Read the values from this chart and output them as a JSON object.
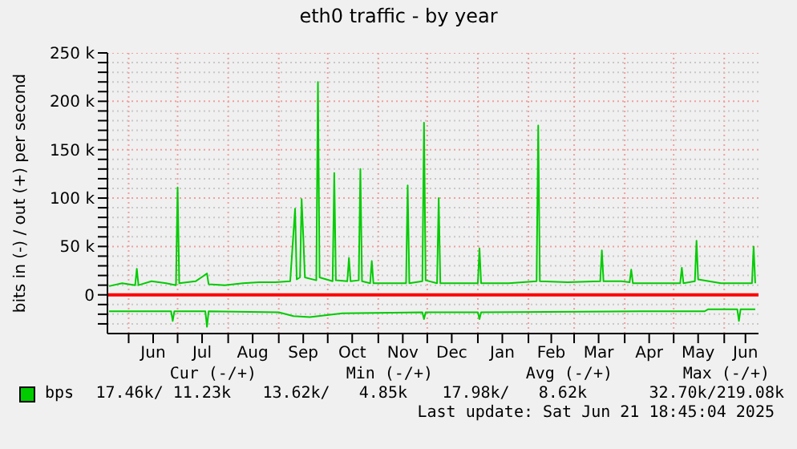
{
  "chart_data": {
    "type": "line",
    "title": "eth0 traffic - by year",
    "ylabel": "bits in (-) / out (+) per second",
    "xlim": [
      "2024-05-19",
      "2025-06-22"
    ],
    "xticks": [
      {
        "value": "2024-06-01",
        "label": null
      },
      {
        "value": "2024-06-16",
        "label": "Jun"
      },
      {
        "value": "2024-07-01",
        "label": null
      },
      {
        "value": "2024-07-16",
        "label": "Jul"
      },
      {
        "value": "2024-08-01",
        "label": null
      },
      {
        "value": "2024-08-16",
        "label": "Aug"
      },
      {
        "value": "2024-09-01",
        "label": null
      },
      {
        "value": "2024-09-16",
        "label": "Sep"
      },
      {
        "value": "2024-10-01",
        "label": null
      },
      {
        "value": "2024-10-16",
        "label": "Oct"
      },
      {
        "value": "2024-11-01",
        "label": null
      },
      {
        "value": "2024-11-16",
        "label": "Nov"
      },
      {
        "value": "2024-12-01",
        "label": null
      },
      {
        "value": "2024-12-16",
        "label": "Dec"
      },
      {
        "value": "2025-01-01",
        "label": null
      },
      {
        "value": "2025-01-16",
        "label": "Jan"
      },
      {
        "value": "2025-02-01",
        "label": null
      },
      {
        "value": "2025-02-15",
        "label": "Feb"
      },
      {
        "value": "2025-03-01",
        "label": null
      },
      {
        "value": "2025-03-16",
        "label": "Mar"
      },
      {
        "value": "2025-04-01",
        "label": null
      },
      {
        "value": "2025-04-16",
        "label": "Apr"
      },
      {
        "value": "2025-05-01",
        "label": null
      },
      {
        "value": "2025-05-16",
        "label": "May"
      },
      {
        "value": "2025-06-01",
        "label": null
      },
      {
        "value": "2025-06-14",
        "label": "Jun"
      }
    ],
    "ylim": [
      -40000,
      250000
    ],
    "yticks": [
      {
        "value": -30000,
        "label": null
      },
      {
        "value": -20000,
        "label": null
      },
      {
        "value": -10000,
        "label": null
      },
      0,
      {
        "value": 10000,
        "label": null
      },
      {
        "value": 20000,
        "label": null
      },
      {
        "value": 30000,
        "label": null
      },
      {
        "value": 40000,
        "label": null
      },
      {
        "value": 50000,
        "label": "50 k"
      },
      {
        "value": 60000,
        "label": null
      },
      {
        "value": 70000,
        "label": null
      },
      {
        "value": 80000,
        "label": null
      },
      {
        "value": 90000,
        "label": null
      },
      {
        "value": 100000,
        "label": "100 k"
      },
      {
        "value": 110000,
        "label": null
      },
      {
        "value": 120000,
        "label": null
      },
      {
        "value": 130000,
        "label": null
      },
      {
        "value": 140000,
        "label": null
      },
      {
        "value": 150000,
        "label": "150 k"
      },
      {
        "value": 160000,
        "label": null
      },
      {
        "value": 170000,
        "label": null
      },
      {
        "value": 180000,
        "label": null
      },
      {
        "value": 190000,
        "label": null
      },
      {
        "value": 200000,
        "label": "200 k"
      },
      {
        "value": 210000,
        "label": null
      },
      {
        "value": 220000,
        "label": null
      },
      {
        "value": 230000,
        "label": null
      },
      {
        "value": 240000,
        "label": null
      },
      {
        "value": 250000,
        "label": "250 k"
      }
    ],
    "grid": true,
    "legend": "bottom left",
    "marker": "none",
    "line_style": "solid",
    "ref_lines": [
      {
        "axis": "y",
        "value": 0,
        "label": null,
        "color": "#ff0000"
      }
    ],
    "series": [
      {
        "name": "bps",
        "color": "#00cc00",
        "x": [
          "2024-05-20",
          "2024-05-28",
          "2024-06-05",
          "2024-06-06",
          "2024-06-07",
          "2024-06-15",
          "2024-06-24",
          "2024-06-30",
          "2024-07-01",
          "2024-07-02",
          "2024-07-12",
          "2024-07-19",
          "2024-07-20",
          "2024-07-30",
          "2024-08-10",
          "2024-08-20",
          "2024-08-30",
          "2024-09-08",
          "2024-09-11",
          "2024-09-12",
          "2024-09-14",
          "2024-09-15",
          "2024-09-16",
          "2024-09-17",
          "2024-09-24",
          "2024-09-25",
          "2024-09-26",
          "2024-10-04",
          "2024-10-05",
          "2024-10-06",
          "2024-10-13",
          "2024-10-14",
          "2024-10-15",
          "2024-10-20",
          "2024-10-21",
          "2024-10-22",
          "2024-10-27",
          "2024-10-28",
          "2024-10-29",
          "2024-11-10",
          "2024-11-18",
          "2024-11-19",
          "2024-11-20",
          "2024-11-28",
          "2024-11-29",
          "2024-11-30",
          "2024-12-07",
          "2024-12-08",
          "2024-12-09",
          "2024-12-20",
          "2025-01-01",
          "2025-01-02",
          "2025-01-03",
          "2025-01-20",
          "2025-02-06",
          "2025-02-07",
          "2025-02-08",
          "2025-02-25",
          "2025-03-17",
          "2025-03-18",
          "2025-03-19",
          "2025-03-30",
          "2025-04-04",
          "2025-04-05",
          "2025-04-06",
          "2025-04-25",
          "2025-05-05",
          "2025-05-06",
          "2025-05-07",
          "2025-05-14",
          "2025-05-15",
          "2025-05-16",
          "2025-05-30",
          "2025-06-10",
          "2025-06-18",
          "2025-06-19",
          "2025-06-20"
        ],
        "values": [
          9000,
          12000,
          10000,
          27000,
          10000,
          14000,
          12000,
          10000,
          111000,
          12000,
          14000,
          22000,
          11000,
          10000,
          12000,
          13000,
          13000,
          14000,
          89000,
          16000,
          18000,
          99000,
          61000,
          18000,
          15000,
          220000,
          18000,
          14000,
          126000,
          15000,
          14000,
          38000,
          14000,
          15000,
          130000,
          14000,
          12000,
          35000,
          12000,
          12000,
          12000,
          113000,
          12000,
          14000,
          178000,
          15000,
          12000,
          100000,
          12000,
          12000,
          12000,
          48000,
          12000,
          12000,
          14000,
          175000,
          14000,
          13000,
          14000,
          46000,
          14000,
          14000,
          13000,
          26000,
          12000,
          12000,
          12000,
          28000,
          12000,
          14000,
          56000,
          16000,
          12000,
          12000,
          12000,
          50000,
          12000
        ]
      },
      {
        "color": "#00cc00",
        "x": [
          "2024-05-20",
          "2024-06-27",
          "2024-06-28",
          "2024-06-29",
          "2024-07-18",
          "2024-07-19",
          "2024-07-20",
          "2024-09-01",
          "2024-09-10",
          "2024-09-20",
          "2024-10-10",
          "2024-11-28",
          "2024-11-29",
          "2024-11-30",
          "2025-01-01",
          "2025-01-02",
          "2025-01-03",
          "2025-04-10",
          "2025-05-20",
          "2025-05-22",
          "2025-06-09",
          "2025-06-10",
          "2025-06-11",
          "2025-06-20"
        ],
        "values": [
          -17000,
          -17000,
          -27000,
          -17000,
          -17000,
          -33000,
          -17000,
          -18000,
          -22000,
          -23000,
          -19000,
          -18000,
          -25000,
          -18000,
          -18000,
          -25000,
          -18000,
          -17000,
          -17000,
          -15000,
          -15000,
          -27000,
          -15000,
          -15000
        ]
      }
    ],
    "annotations": [
      "Cur (-/+)",
      "Min (-/+)",
      "Avg (-/+)",
      "Max (-/+)",
      "17.46k/ 11.23k",
      "13.62k/   4.85k",
      "17.98k/   8.62k",
      "32.70k/219.08k",
      "Last update: Sat Jun 21 18:45:04 2025"
    ]
  }
}
